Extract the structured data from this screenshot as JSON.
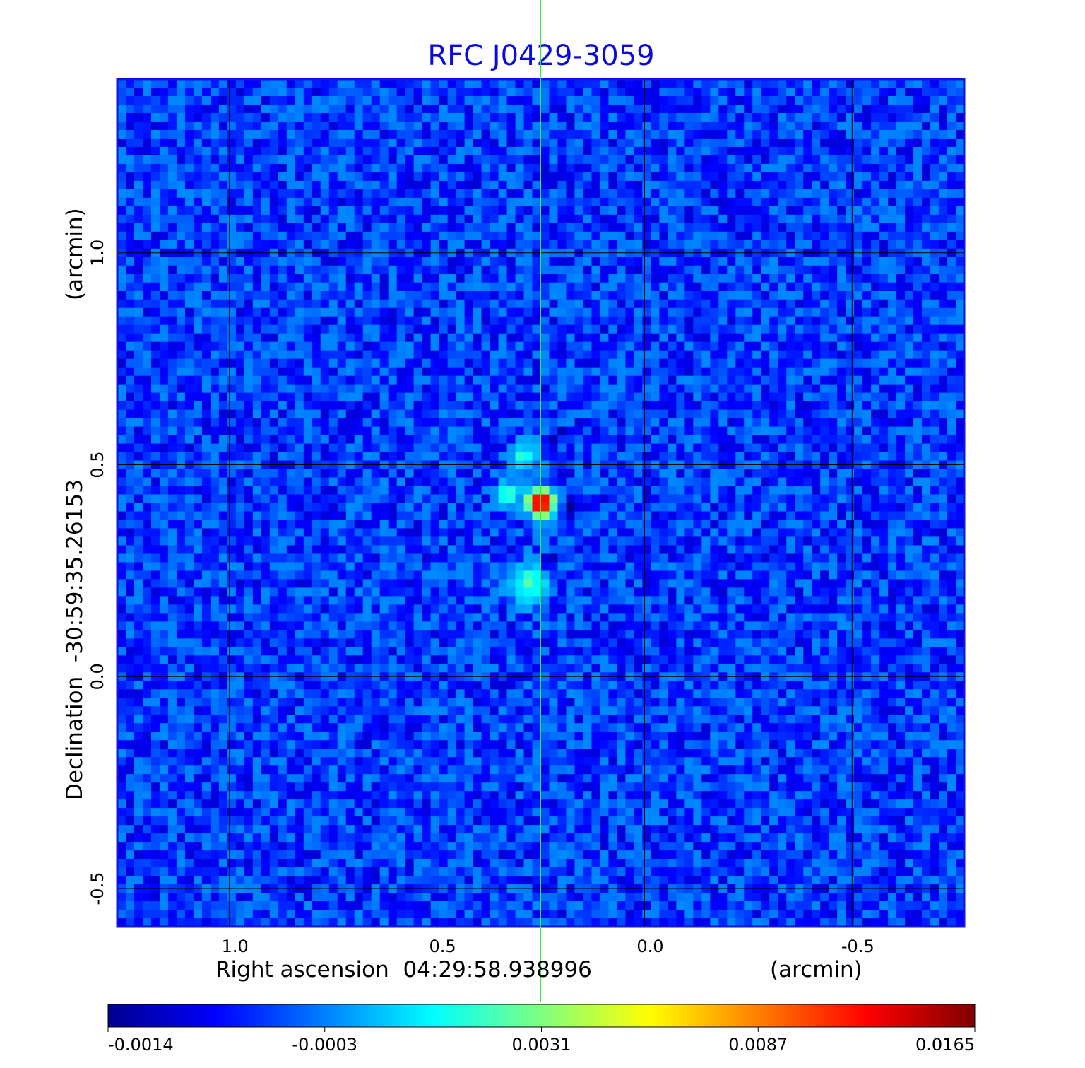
{
  "chart_data": {
    "type": "heatmap",
    "title": "RFC J0429-3059",
    "xlabel": "Right ascension  04:29:58.938996",
    "xunit": "(arcmin)",
    "ylabel": "Declination  -30:59:35.26153",
    "yunit": "(arcmin)",
    "xlim": [
      1.27,
      -0.77
    ],
    "ylim": [
      -0.59,
      1.41
    ],
    "x_ticks": [
      {
        "value": 1.0,
        "label": "1.0"
      },
      {
        "value": 0.5,
        "label": "0.5"
      },
      {
        "value": 0.0,
        "label": "0.0"
      },
      {
        "value": -0.5,
        "label": "-0.5"
      }
    ],
    "y_ticks": [
      {
        "value": 1.0,
        "label": "1.0"
      },
      {
        "value": 0.5,
        "label": "0.5"
      },
      {
        "value": 0.0,
        "label": "0.0"
      },
      {
        "value": -0.5,
        "label": "-0.5"
      }
    ],
    "grid": true,
    "crosshair": {
      "x": 0.25,
      "y": 0.41
    },
    "colormap": "jet",
    "colorbar_ticks": [
      "-0.0014",
      "-0.0003",
      "0.0031",
      "0.0087",
      "0.0165"
    ],
    "background_level": -0.0006,
    "features": [
      {
        "x": 0.25,
        "y": 0.41,
        "peak": 0.0165,
        "sigma": 0.018
      },
      {
        "x": 0.19,
        "y": 0.39,
        "peak": -0.0014,
        "sigma": 0.014
      },
      {
        "x": 0.23,
        "y": 0.27,
        "peak": -0.0012,
        "sigma": 0.015
      },
      {
        "x": 0.21,
        "y": 0.56,
        "peak": -0.0012,
        "sigma": 0.015
      },
      {
        "x": 0.28,
        "y": 0.22,
        "peak": 0.0022,
        "sigma": 0.03
      },
      {
        "x": 0.29,
        "y": 0.52,
        "peak": 0.0018,
        "sigma": 0.022
      },
      {
        "x": 0.33,
        "y": 0.43,
        "peak": 0.0026,
        "sigma": 0.018
      }
    ],
    "colors": {
      "title": "#0a0ae0",
      "frame": "#1414d8",
      "grid": "#000000",
      "crosshair": "#33ee33"
    }
  }
}
